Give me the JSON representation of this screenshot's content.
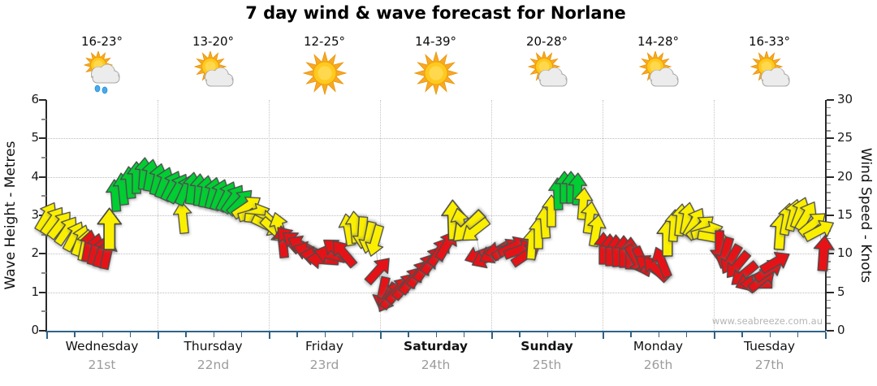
{
  "title": "7 day wind & wave forecast for Norlane",
  "watermark": "www.seabreeze.com.au",
  "left_axis": {
    "label": "Wave Height - Metres",
    "min": 0,
    "max": 6,
    "major_ticks": [
      0,
      1,
      2,
      3,
      4,
      5,
      6
    ]
  },
  "right_axis": {
    "label": "Wind Speed - Knots",
    "min": 0,
    "max": 30,
    "major_ticks": [
      0,
      5,
      10,
      15,
      20,
      25,
      30
    ]
  },
  "days": [
    {
      "name": "Wednesday",
      "date": "21st",
      "temp": "16-23°",
      "icon": "sun-cloud-rain",
      "bold": false
    },
    {
      "name": "Thursday",
      "date": "22nd",
      "temp": "13-20°",
      "icon": "sun-cloud",
      "bold": false
    },
    {
      "name": "Friday",
      "date": "23rd",
      "temp": "12-25°",
      "icon": "sun",
      "bold": false
    },
    {
      "name": "Saturday",
      "date": "24th",
      "temp": "14-39°",
      "icon": "sun",
      "bold": true
    },
    {
      "name": "Sunday",
      "date": "25th",
      "temp": "20-28°",
      "icon": "sun-cloud",
      "bold": true
    },
    {
      "name": "Monday",
      "date": "26th",
      "temp": "14-28°",
      "icon": "sun-cloud",
      "bold": false
    },
    {
      "name": "Tuesday",
      "date": "27th",
      "temp": "16-33°",
      "icon": "sun-cloud",
      "bold": false
    }
  ],
  "colors": {
    "arrow_green": "#00ce32",
    "arrow_yellow": "#faef00",
    "arrow_red": "#e51317",
    "arrow_outline": "#4a4a4a",
    "bottom_axis_blue": "#2f6287",
    "grid_gray": "#bdbdbd",
    "date_gray": "#9c9c9c",
    "watermark_gray": "#b5b5b5"
  },
  "chart_data": {
    "type": "wind-arrow-timeseries",
    "x_range_days": 7,
    "left_ylim_metres": [
      0,
      6
    ],
    "right_ylim_knots": [
      0,
      30
    ],
    "scale_relation": "wave_metres = knots / 5",
    "grid": "dotted horizontal each metre, dotted vertical each day boundary",
    "arrow_columns": [
      "x_px_in_plot_0_959",
      "knots",
      "direction_deg_cw_from_up",
      "color",
      "scale"
    ],
    "arrows": [
      [
        0,
        14.8,
        30,
        "y",
        1
      ],
      [
        8,
        14.3,
        35,
        "y",
        1
      ],
      [
        17,
        13.8,
        38,
        "y",
        1
      ],
      [
        25,
        13.0,
        34,
        "y",
        1
      ],
      [
        34,
        12.3,
        28,
        "y",
        1
      ],
      [
        42,
        11.8,
        20,
        "y",
        1
      ],
      [
        48,
        11.2,
        12,
        "y",
        1
      ],
      [
        52,
        11.0,
        10,
        "r",
        1
      ],
      [
        60,
        10.6,
        14,
        "r",
        1
      ],
      [
        68,
        10.3,
        18,
        "r",
        1
      ],
      [
        75,
        10.1,
        12,
        "r",
        1
      ],
      [
        78,
        13.2,
        0,
        "y",
        1.3
      ],
      [
        85,
        17.6,
        -4,
        "g",
        1
      ],
      [
        94,
        18.4,
        -6,
        "g",
        1
      ],
      [
        103,
        19.3,
        -5,
        "g",
        1
      ],
      [
        111,
        19.9,
        0,
        "g",
        1
      ],
      [
        120,
        20.4,
        4,
        "g",
        1
      ],
      [
        128,
        20.2,
        10,
        "g",
        1
      ],
      [
        137,
        19.7,
        14,
        "g",
        1
      ],
      [
        145,
        19.3,
        20,
        "g",
        1
      ],
      [
        154,
        18.9,
        26,
        "g",
        1
      ],
      [
        162,
        18.5,
        30,
        "g",
        1
      ],
      [
        168,
        14.7,
        -6,
        "y",
        1
      ],
      [
        171,
        18.3,
        24,
        "g",
        1
      ],
      [
        179,
        18.5,
        8,
        "g",
        1
      ],
      [
        188,
        18.3,
        4,
        "g",
        1
      ],
      [
        196,
        18.1,
        10,
        "g",
        1
      ],
      [
        205,
        17.9,
        14,
        "g",
        1
      ],
      [
        213,
        17.7,
        20,
        "g",
        1
      ],
      [
        222,
        17.5,
        26,
        "g",
        1
      ],
      [
        230,
        17.2,
        34,
        "g",
        1
      ],
      [
        239,
        16.8,
        44,
        "g",
        1
      ],
      [
        247,
        16.1,
        56,
        "y",
        1
      ],
      [
        256,
        15.3,
        74,
        "y",
        1
      ],
      [
        264,
        14.5,
        96,
        "y",
        1
      ],
      [
        272,
        13.7,
        116,
        "y",
        1
      ],
      [
        281,
        13.1,
        132,
        "y",
        1
      ],
      [
        287,
        13.4,
        -16,
        "y",
        1
      ],
      [
        291,
        11.6,
        -6,
        "r",
        1
      ],
      [
        298,
        11.9,
        -42,
        "r",
        1
      ],
      [
        307,
        11.5,
        -52,
        "r",
        1
      ],
      [
        315,
        11.0,
        -62,
        "r",
        1
      ],
      [
        323,
        10.3,
        -72,
        "r",
        1
      ],
      [
        332,
        9.7,
        -80,
        "r",
        1
      ],
      [
        340,
        9.3,
        -86,
        "r",
        1
      ],
      [
        349,
        9.9,
        -76,
        "r",
        1
      ],
      [
        357,
        10.5,
        -52,
        "r",
        1
      ],
      [
        366,
        10.1,
        -40,
        "r",
        1
      ],
      [
        372,
        13.2,
        -10,
        "y",
        1
      ],
      [
        380,
        13.5,
        -5,
        "y",
        1
      ],
      [
        389,
        12.7,
        184,
        "y",
        1
      ],
      [
        397,
        12.1,
        192,
        "y",
        1
      ],
      [
        405,
        11.7,
        196,
        "y",
        1
      ],
      [
        409,
        7.9,
        42,
        "r",
        1
      ],
      [
        414,
        4.9,
        192,
        "r",
        1
      ],
      [
        420,
        4.3,
        210,
        "r",
        1
      ],
      [
        426,
        4.7,
        36,
        "r",
        1
      ],
      [
        434,
        5.3,
        40,
        "r",
        1
      ],
      [
        442,
        5.9,
        40,
        "r",
        1
      ],
      [
        450,
        6.6,
        38,
        "r",
        1
      ],
      [
        459,
        7.4,
        36,
        "r",
        1
      ],
      [
        467,
        8.3,
        35,
        "r",
        1
      ],
      [
        476,
        9.3,
        35,
        "r",
        1
      ],
      [
        484,
        10.3,
        33,
        "r",
        1
      ],
      [
        493,
        11.1,
        30,
        "r",
        1
      ],
      [
        501,
        14.4,
        -2,
        "y",
        1.25
      ],
      [
        510,
        13.9,
        -12,
        "y",
        1
      ],
      [
        519,
        13.5,
        226,
        "y",
        1.25
      ],
      [
        528,
        13.1,
        232,
        "y",
        1
      ],
      [
        534,
        9.9,
        -110,
        "r",
        1
      ],
      [
        542,
        9.5,
        -116,
        "r",
        1
      ],
      [
        551,
        10.1,
        -120,
        "r",
        1
      ],
      [
        559,
        10.4,
        -100,
        "r",
        1
      ],
      [
        567,
        10.6,
        58,
        "r",
        1
      ],
      [
        575,
        10.9,
        64,
        "r",
        1
      ],
      [
        583,
        10.5,
        70,
        "r",
        1
      ],
      [
        591,
        9.9,
        56,
        "r",
        1
      ],
      [
        598,
        11.4,
        4,
        "y",
        1
      ],
      [
        606,
        12.7,
        0,
        "y",
        1
      ],
      [
        614,
        14.1,
        -4,
        "y",
        1
      ],
      [
        622,
        15.6,
        0,
        "y",
        1
      ],
      [
        630,
        17.8,
        -2,
        "g",
        1
      ],
      [
        638,
        18.6,
        0,
        "g",
        1
      ],
      [
        646,
        18.7,
        0,
        "g",
        1
      ],
      [
        654,
        18.4,
        2,
        "g",
        1
      ],
      [
        661,
        16.5,
        5,
        "y",
        1
      ],
      [
        669,
        14.7,
        8,
        "y",
        1
      ],
      [
        677,
        13.1,
        10,
        "y",
        1
      ],
      [
        686,
        10.7,
        0,
        "r",
        1
      ],
      [
        694,
        10.5,
        0,
        "r",
        1
      ],
      [
        702,
        10.4,
        -2,
        "r",
        1
      ],
      [
        711,
        10.3,
        0,
        "r",
        1
      ],
      [
        719,
        10.1,
        2,
        "r",
        1
      ],
      [
        726,
        9.3,
        150,
        "r",
        1
      ],
      [
        734,
        8.9,
        156,
        "r",
        1
      ],
      [
        742,
        8.5,
        -56,
        "r",
        1
      ],
      [
        750,
        8.1,
        -46,
        "r",
        1
      ],
      [
        758,
        8.9,
        -22,
        "r",
        1
      ],
      [
        765,
        12.1,
        0,
        "y",
        1.15
      ],
      [
        773,
        13.7,
        4,
        "y",
        1
      ],
      [
        781,
        14.4,
        6,
        "y",
        1
      ],
      [
        789,
        14.6,
        10,
        "y",
        1
      ],
      [
        798,
        14.1,
        30,
        "y",
        1
      ],
      [
        806,
        13.5,
        50,
        "y",
        1
      ],
      [
        814,
        12.9,
        74,
        "y",
        1
      ],
      [
        822,
        12.1,
        100,
        "y",
        1
      ],
      [
        829,
        10.9,
        180,
        "r",
        1
      ],
      [
        836,
        10.1,
        196,
        "r",
        1
      ],
      [
        843,
        9.3,
        210,
        "r",
        1
      ],
      [
        851,
        8.5,
        220,
        "r",
        1
      ],
      [
        859,
        7.3,
        230,
        "r",
        1
      ],
      [
        867,
        6.5,
        246,
        "r",
        1
      ],
      [
        874,
        6.1,
        -90,
        "r",
        1
      ],
      [
        882,
        6.7,
        50,
        "r",
        1
      ],
      [
        890,
        7.9,
        56,
        "r",
        1
      ],
      [
        898,
        8.9,
        60,
        "r",
        1
      ],
      [
        904,
        12.9,
        4,
        "y",
        1.15
      ],
      [
        912,
        14.5,
        10,
        "y",
        1
      ],
      [
        920,
        15.1,
        14,
        "y",
        1
      ],
      [
        928,
        15.4,
        20,
        "y",
        1
      ],
      [
        936,
        14.9,
        30,
        "y",
        1
      ],
      [
        944,
        13.9,
        50,
        "y",
        1
      ],
      [
        952,
        13.1,
        62,
        "y",
        1
      ],
      [
        957,
        10.1,
        4,
        "r",
        1.1
      ]
    ]
  }
}
